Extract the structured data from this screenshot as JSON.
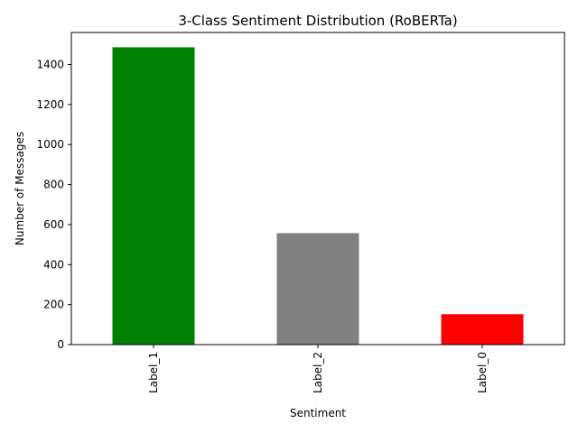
{
  "chart_data": {
    "type": "bar",
    "title": "3-Class Sentiment Distribution (RoBERTa)",
    "xlabel": "Sentiment",
    "ylabel": "Number of Messages",
    "categories": [
      "Label_1",
      "Label_2",
      "Label_0"
    ],
    "values": [
      1486,
      557,
      152
    ],
    "colors": [
      "#008000",
      "#808080",
      "#ff0000"
    ],
    "ylim": [
      0,
      1560
    ],
    "yticks": [
      0,
      200,
      400,
      600,
      800,
      1000,
      1200,
      1400
    ],
    "x_tick_rotation": "vertical",
    "grid": false,
    "legend": "none"
  }
}
